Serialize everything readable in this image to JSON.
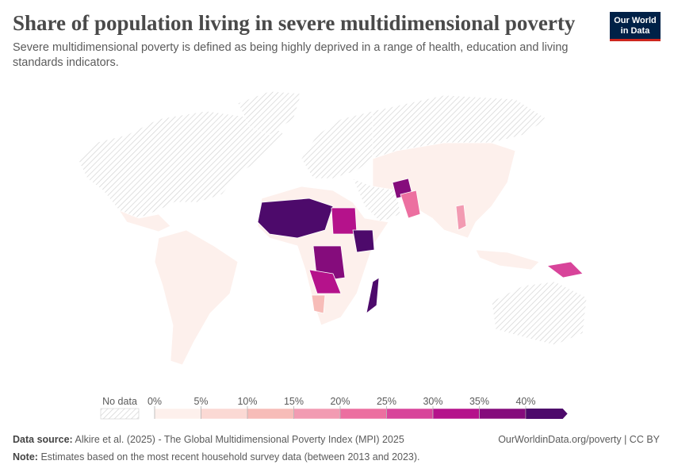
{
  "header": {
    "title": "Share of population living in severe multidimensional poverty",
    "subtitle_lines": [
      "Severe multidimensional poverty is defined as being highly deprived in a range of health, education and living",
      "standards indicators."
    ]
  },
  "logo": {
    "lines": [
      "Our World",
      "in Data"
    ]
  },
  "legend": {
    "no_data_label": "No data",
    "ticks": [
      {
        "value": 0,
        "label": "0%"
      },
      {
        "value": 5,
        "label": "5%"
      },
      {
        "value": 10,
        "label": "10%"
      },
      {
        "value": 15,
        "label": "15%"
      },
      {
        "value": 20,
        "label": "20%"
      },
      {
        "value": 25,
        "label": "25%"
      },
      {
        "value": 30,
        "label": "30%"
      },
      {
        "value": 35,
        "label": "35%"
      },
      {
        "value": 40,
        "label": "40%"
      }
    ],
    "colors": [
      "#fdf0ec",
      "#fbd9d4",
      "#f7bcb8",
      "#f29bb2",
      "#ec6fa0",
      "#d8449a",
      "#b5128b",
      "#850c7c",
      "#4d0a6b"
    ]
  },
  "footer": {
    "source_label": "Data source:",
    "source_text": "Alkire et al. (2025) - The Global Multidimensional Poverty Index (MPI) 2025",
    "note_label": "Note:",
    "note_text": "Estimates based on the most recent household survey data (between 2013 and 2023).",
    "link": "OurWorldinData.org/poverty | CC BY"
  }
}
